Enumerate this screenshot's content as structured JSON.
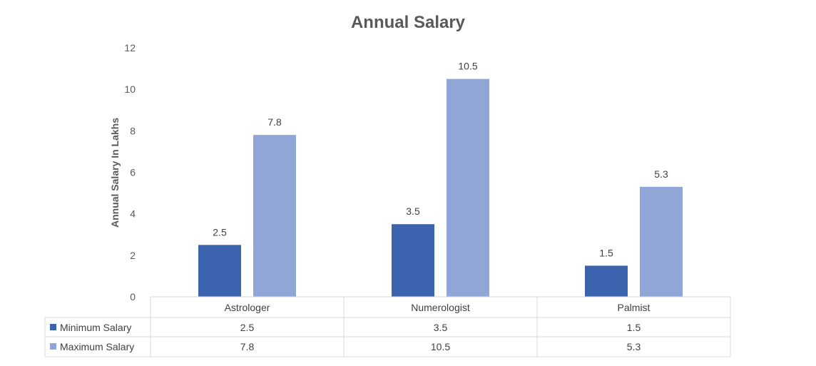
{
  "chart_data": {
    "type": "bar",
    "title": "Annual Salary",
    "xlabel": "",
    "ylabel": "Annual Salary In Lakhs",
    "ylim": [
      0,
      12
    ],
    "yticks": [
      "0",
      "2",
      "4",
      "6",
      "8",
      "10",
      "12"
    ],
    "grid": false,
    "legend": "data-table",
    "categories": [
      "Astrologer",
      "Numerologist",
      "Palmist"
    ],
    "series": [
      {
        "name": "Minimum Salary",
        "values": [
          2.5,
          3.5,
          1.5
        ],
        "color": "#3c64ae"
      },
      {
        "name": "Maximum Salary",
        "values": [
          7.8,
          10.5,
          5.3
        ],
        "color": "#8fa6d6"
      }
    ]
  }
}
